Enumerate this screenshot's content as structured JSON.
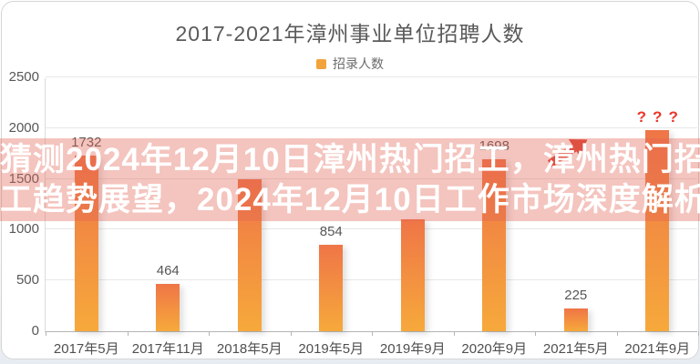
{
  "page": {
    "background_bottom": "#e7ecf2",
    "card_background": "#ffffff",
    "card_border": "#d6d6d6"
  },
  "chart_data": {
    "type": "bar",
    "title": "2017-2021年漳州事业单位招聘人数",
    "legend": [
      {
        "label": "招录人数",
        "color": "#F2A33C"
      }
    ],
    "legend_position": "top-center",
    "categories": [
      "2017年5月",
      "2017年11月",
      "2018年5月",
      "2019年5月",
      "2019年9月",
      "2020年9月",
      "2021年5月",
      "2021年9月"
    ],
    "values": [
      1732,
      464,
      1500,
      854,
      1100,
      1698,
      225,
      1980
    ],
    "bar_labels": [
      "1732",
      "464",
      "",
      "854",
      "",
      "1698",
      "225",
      "???"
    ],
    "xlabel": "",
    "ylabel": "",
    "ylim": [
      0,
      2500
    ],
    "yticks": [
      0,
      500,
      1000,
      1500,
      2000,
      2500
    ],
    "grid": true,
    "bar_gradient_top": "#EF7547",
    "bar_gradient_bottom": "#F6A93B",
    "unknown_label_color": "#E8382C"
  },
  "overlay": {
    "line1": "猜测2024年12月10日漳州热门招工，漳州热门招",
    "line2": "工趋势展望，2024年12月10日工作市场深度解析",
    "band_color": "rgba(226,100,85,0.38)",
    "text_color": "#ffffff"
  },
  "annotations": {
    "trend_arrow_color": "#DC4437",
    "forecast_marker": "???"
  }
}
